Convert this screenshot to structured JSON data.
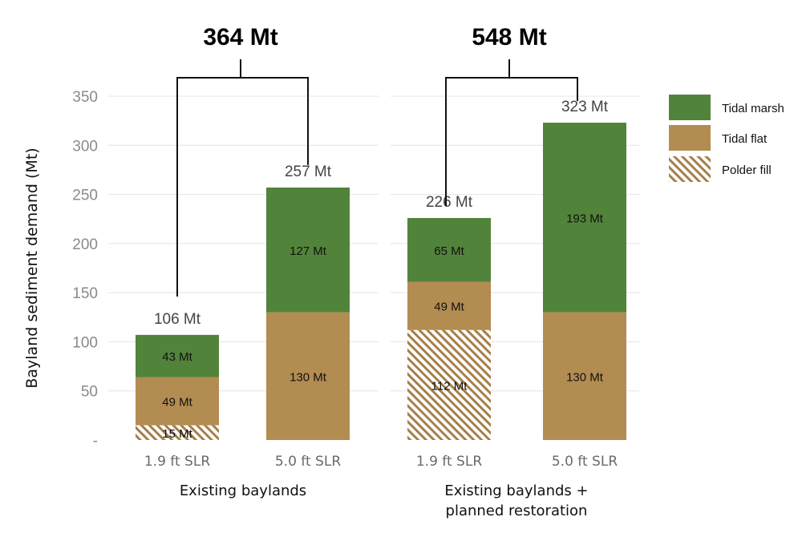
{
  "chart_data": {
    "type": "bar",
    "stacked": true,
    "ylabel": "Bayland sediment demand (Mt)",
    "ylim": [
      0,
      350
    ],
    "yticks": [
      0,
      50,
      100,
      150,
      200,
      250,
      300,
      350
    ],
    "ytick_labels": [
      "-",
      "50",
      "100",
      "150",
      "200",
      "250",
      "300",
      "350"
    ],
    "grid": true,
    "legend_position": "right",
    "colors": {
      "marsh": "#52833a",
      "flat": "#b38c52",
      "polder": "#a57f48"
    },
    "groups": [
      {
        "label": "Existing baylands",
        "grand_total": "364 Mt",
        "bars": [
          {
            "category": "1.9 ft SLR",
            "polder": 15,
            "flat": 49,
            "marsh": 43,
            "polder_label": "15 Mt",
            "flat_label": "49 Mt",
            "marsh_label": "43 Mt",
            "total_label": "106 Mt"
          },
          {
            "category": "5.0 ft SLR",
            "polder": 0,
            "flat": 130,
            "marsh": 127,
            "polder_label": "",
            "flat_label": "130 Mt",
            "marsh_label": "127 Mt",
            "total_label": "257 Mt"
          }
        ]
      },
      {
        "label": "Existing baylands + planned restoration",
        "label_lines": [
          "Existing baylands +",
          "planned restoration"
        ],
        "grand_total": "548 Mt",
        "bars": [
          {
            "category": "1.9 ft SLR",
            "polder": 112,
            "flat": 49,
            "marsh": 65,
            "polder_label": "112 Mt",
            "flat_label": "49 Mt",
            "marsh_label": "65 Mt",
            "total_label": "226 Mt"
          },
          {
            "category": "5.0 ft SLR",
            "polder": 0,
            "flat": 130,
            "marsh": 193,
            "polder_label": "",
            "flat_label": "130 Mt",
            "marsh_label": "193 Mt",
            "total_label": "323 Mt"
          }
        ]
      }
    ],
    "legend": [
      {
        "key": "marsh",
        "label": "Tidal marsh"
      },
      {
        "key": "flat",
        "label": "Tidal flat"
      },
      {
        "key": "polder",
        "label": "Polder fill"
      }
    ]
  }
}
